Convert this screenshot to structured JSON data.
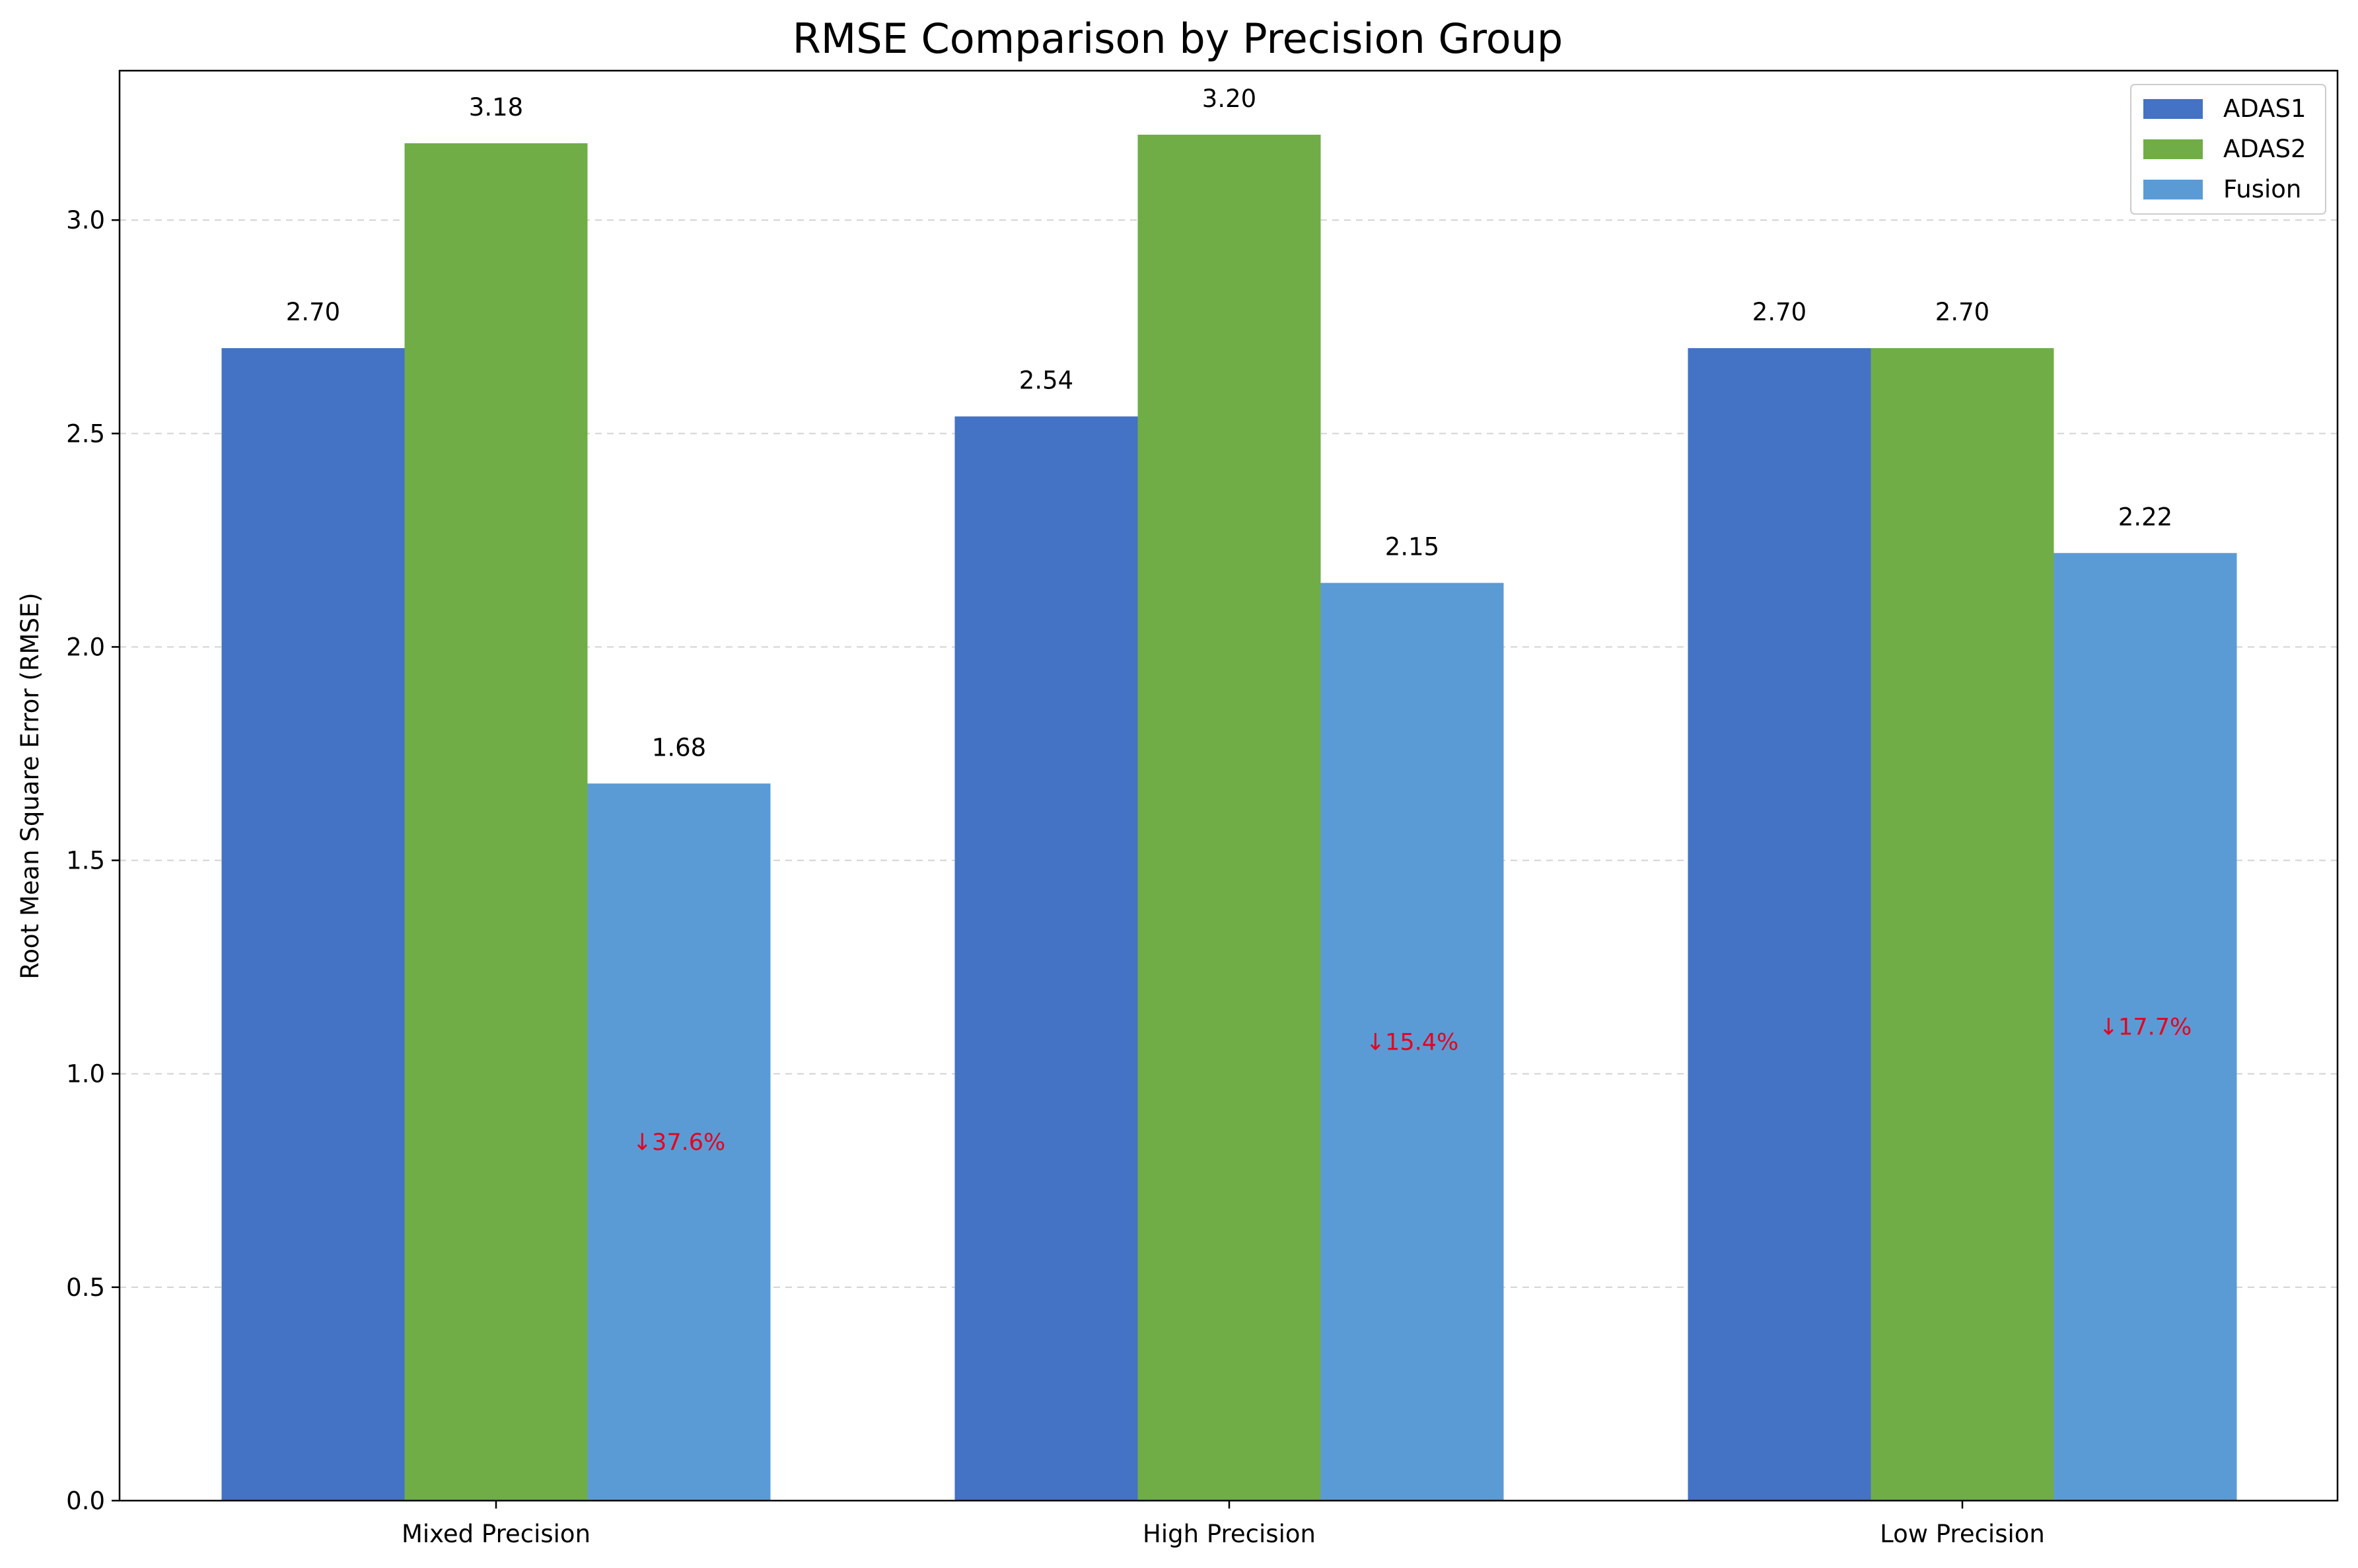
{
  "chart_data": {
    "type": "bar",
    "title": "RMSE Comparison by Precision Group",
    "xlabel": "",
    "ylabel": "Root Mean Square Error (RMSE)",
    "ylim": [
      0,
      3.35
    ],
    "yticks": [
      "0.0",
      "0.5",
      "1.0",
      "1.5",
      "2.0",
      "2.5",
      "3.0"
    ],
    "grid": "y-dashed",
    "legend_position": "top-right",
    "categories": [
      "Mixed Precision",
      "High Precision",
      "Low Precision"
    ],
    "series": [
      {
        "name": "ADAS1",
        "color": "#4472c4",
        "values": [
          2.7,
          2.54,
          2.7
        ],
        "labels": [
          "2.70",
          "2.54",
          "2.70"
        ]
      },
      {
        "name": "ADAS2",
        "color": "#70ad47",
        "values": [
          3.18,
          3.2,
          2.7
        ],
        "labels": [
          "3.18",
          "3.20",
          "2.70"
        ]
      },
      {
        "name": "Fusion",
        "color": "#5b9bd5",
        "values": [
          1.68,
          2.15,
          2.22
        ],
        "labels": [
          "1.68",
          "2.15",
          "2.22"
        ]
      }
    ],
    "annotations": [
      {
        "category": "Mixed Precision",
        "series": "Fusion",
        "text": "↓37.6%",
        "y": 0.84,
        "color": "#e8001c"
      },
      {
        "category": "High Precision",
        "series": "Fusion",
        "text": "↓15.4%",
        "y": 1.075,
        "color": "#e8001c"
      },
      {
        "category": "Low Precision",
        "series": "Fusion",
        "text": "↓17.7%",
        "y": 1.11,
        "color": "#e8001c"
      }
    ]
  }
}
